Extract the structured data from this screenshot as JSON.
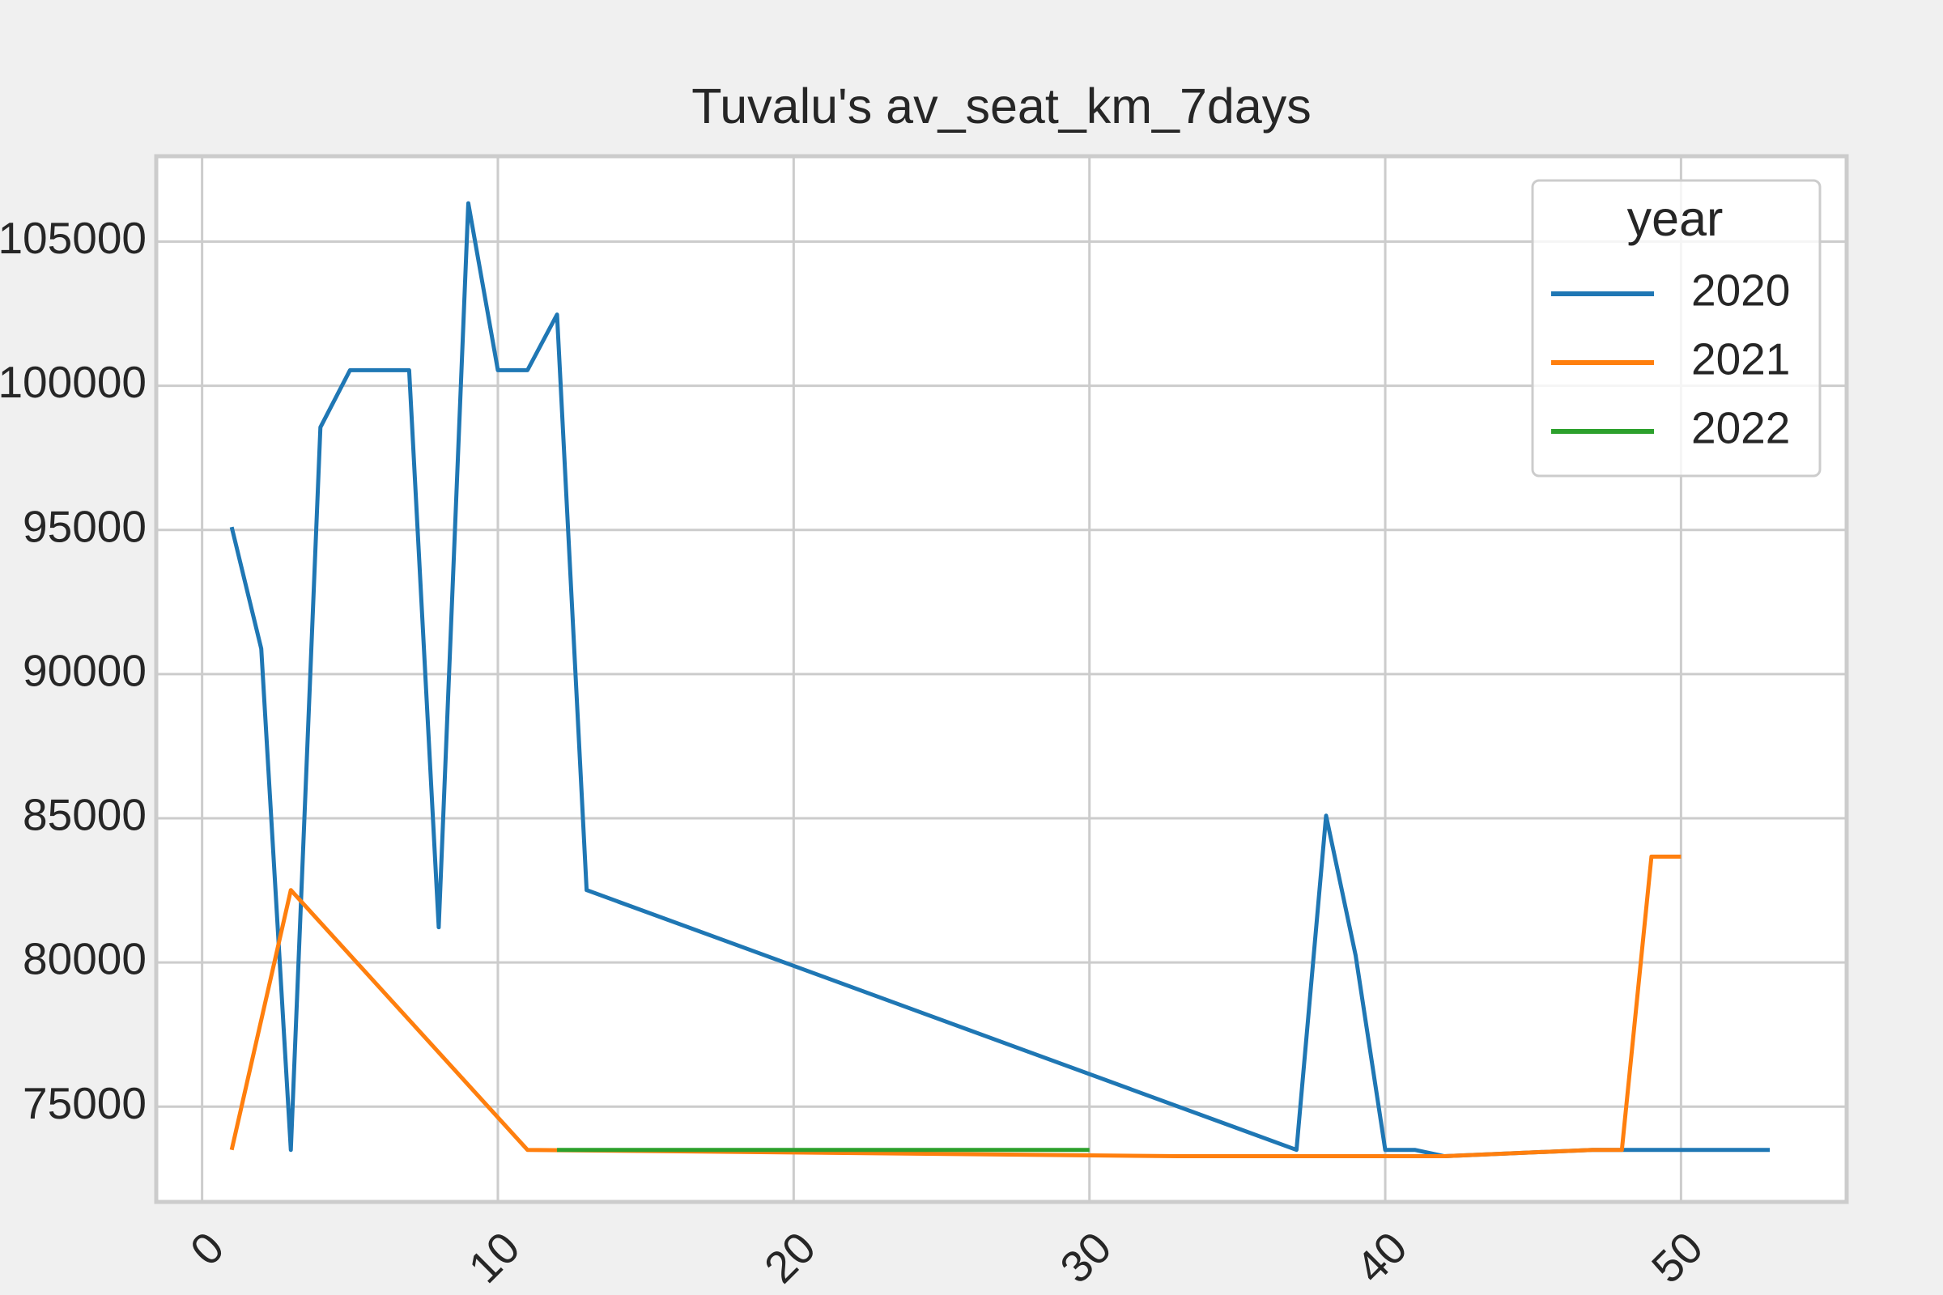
{
  "chart_data": {
    "type": "line",
    "title": "Tuvalu's av_seat_km_7days",
    "legend_title": "year",
    "legend_position": "upper right",
    "grid": true,
    "xlim": [
      -1.55,
      55.6
    ],
    "xticks": [
      0,
      10,
      20,
      30,
      40,
      50
    ],
    "ylim": [
      71695,
      107961
    ],
    "yticks": [
      75000,
      80000,
      85000,
      90000,
      95000,
      100000,
      105000
    ],
    "series": [
      {
        "name": "2020",
        "color": "#1f77b4",
        "x": [
          1,
          2,
          3,
          4,
          5,
          6,
          7,
          8,
          9,
          10,
          11,
          12,
          13,
          37,
          38,
          39,
          40,
          41,
          42,
          47,
          48,
          49,
          50,
          51,
          52,
          53
        ],
        "values": [
          95100,
          90880,
          73500,
          98560,
          100540,
          100540,
          100540,
          81220,
          106330,
          100540,
          100540,
          102470,
          82510,
          73500,
          85090,
          80240,
          73500,
          73500,
          73280,
          73500,
          73500,
          73500,
          73500,
          73500,
          73500,
          73500
        ]
      },
      {
        "name": "2021",
        "color": "#ff7f0e",
        "x": [
          1,
          3,
          11,
          33,
          42,
          47,
          48,
          49,
          50
        ],
        "values": [
          73500,
          82510,
          73500,
          73280,
          73280,
          73500,
          73500,
          83670,
          83670
        ]
      },
      {
        "name": "2022",
        "color": "#2ca02c",
        "x": [
          12,
          30
        ],
        "values": [
          73500,
          73500
        ]
      }
    ]
  }
}
